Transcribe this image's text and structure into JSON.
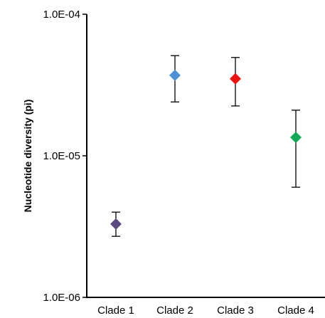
{
  "chart_data": {
    "type": "scatter",
    "title": "",
    "xlabel": "",
    "ylabel": "Nucleotide diversity (pi)",
    "yscale": "log",
    "ylim": [
      1e-06,
      0.0001
    ],
    "grid": false,
    "legend": "none",
    "categories": [
      "Clade 1",
      "Clade 2",
      "Clade 3",
      "Clade 4"
    ],
    "yticks": [
      {
        "value": 1e-06,
        "label": "1.0E-06"
      },
      {
        "value": 1e-05,
        "label": "1.0E-05"
      },
      {
        "value": 0.0001,
        "label": "1.0E-04"
      }
    ],
    "points": [
      {
        "category": "Clade 1",
        "value": 3.3e-06,
        "err_low": 2.7e-06,
        "err_high": 4e-06,
        "color": "#5b4a7f"
      },
      {
        "category": "Clade 2",
        "value": 3.7e-05,
        "err_low": 2.4e-05,
        "err_high": 5.1e-05,
        "color": "#4f8fd8"
      },
      {
        "category": "Clade 3",
        "value": 3.5e-05,
        "err_low": 2.25e-05,
        "err_high": 4.95e-05,
        "color": "#ee1111"
      },
      {
        "category": "Clade 4",
        "value": 1.35e-05,
        "err_low": 6e-06,
        "err_high": 2.1e-05,
        "color": "#11aa55"
      }
    ]
  }
}
